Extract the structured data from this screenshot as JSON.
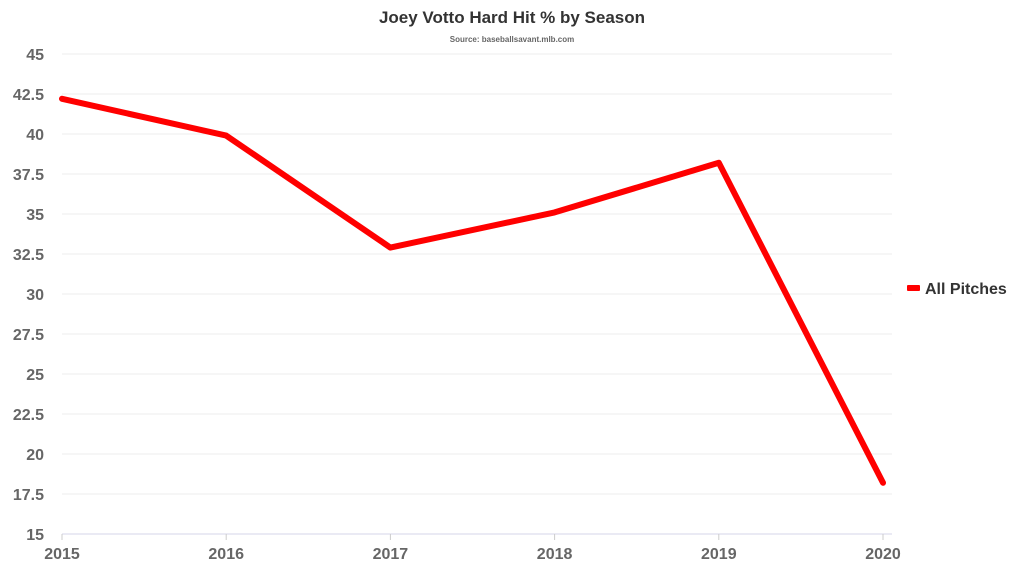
{
  "chart_data": {
    "type": "line",
    "title": "Joey Votto Hard Hit % by Season",
    "subtitle": "Source: baseballsavant.mlb.com",
    "xlabel": "",
    "ylabel": "",
    "x": [
      "2015",
      "2016",
      "2017",
      "2018",
      "2019",
      "2020"
    ],
    "series": [
      {
        "name": "All Pitches",
        "color": "#ff0000",
        "values": [
          42.2,
          39.9,
          32.9,
          35.1,
          38.2,
          18.2
        ]
      }
    ],
    "ylim": [
      15,
      45
    ],
    "yticks": [
      "15",
      "17.5",
      "20",
      "22.5",
      "25",
      "27.5",
      "30",
      "32.5",
      "35",
      "37.5",
      "40",
      "42.5",
      "45"
    ],
    "grid": true,
    "legend_position": "right"
  }
}
